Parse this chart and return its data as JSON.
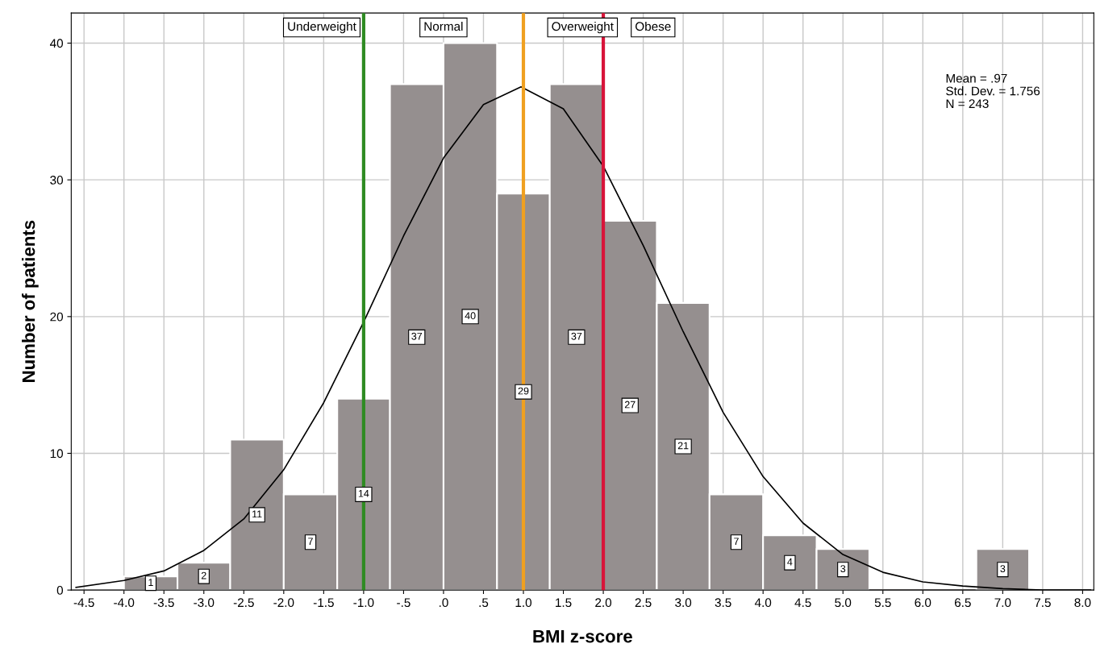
{
  "chart_data": {
    "type": "histogram",
    "xlabel": "BMI z-score",
    "ylabel": "Number of patients",
    "bins": [
      -4.0,
      -3.33,
      -2.67,
      -2.0,
      -1.33,
      -0.67,
      0.0,
      0.67,
      1.33,
      2.0,
      2.67,
      3.33,
      4.0,
      4.67,
      5.33,
      6.0,
      6.67,
      7.33
    ],
    "values": [
      1,
      2,
      11,
      7,
      14,
      37,
      40,
      29,
      37,
      27,
      21,
      7,
      4,
      3,
      0,
      0,
      3
    ],
    "value_labels": [
      "1",
      "2",
      "11",
      "7",
      "14",
      "37",
      "40",
      "29",
      "37",
      "27",
      "21",
      "7",
      "4",
      "3",
      null,
      null,
      "3"
    ],
    "color": "#958f8f",
    "series": [
      {
        "type": "line",
        "color": "#000000",
        "x": [
          -4.6,
          -4.0,
          -3.5,
          -3.0,
          -2.5,
          -2.0,
          -1.5,
          -1.0,
          -0.5,
          0.0,
          0.5,
          0.97,
          1.5,
          2.0,
          2.5,
          3.0,
          3.5,
          4.0,
          4.5,
          5.0,
          5.5,
          6.0,
          6.5,
          7.0,
          7.5,
          8.1
        ],
        "values": [
          0.2,
          0.7,
          1.4,
          2.9,
          5.2,
          8.8,
          13.7,
          19.6,
          25.9,
          31.6,
          35.5,
          36.8,
          35.2,
          31.0,
          25.2,
          18.9,
          13.0,
          8.3,
          4.9,
          2.6,
          1.3,
          0.6,
          0.3,
          0.1,
          0.0,
          0.0
        ]
      }
    ],
    "ref_lines": [
      {
        "axis": "x",
        "value": -1.0,
        "color": "#2e8b22"
      },
      {
        "axis": "x",
        "value": 1.0,
        "color": "#f0a020"
      },
      {
        "axis": "x",
        "value": 2.0,
        "color": "#d8143a"
      }
    ],
    "annotations": [
      "Underweight",
      "Normal",
      "Overweight",
      "Obese",
      "Mean = .97",
      "Std. Dev. = 1.756",
      "N = 243"
    ],
    "xlim": [
      -4.66,
      8.14
    ],
    "ylim": [
      0,
      42.2
    ],
    "xticks": [
      {
        "value": -4.5,
        "label": "-4.5"
      },
      {
        "value": -4,
        "label": "-4.0"
      },
      {
        "value": -3.5,
        "label": "-3.5"
      },
      {
        "value": -3,
        "label": "-3.0"
      },
      {
        "value": -2.5,
        "label": "-2.5"
      },
      {
        "value": -2,
        "label": "-2.0"
      },
      {
        "value": -1.5,
        "label": "-1.5"
      },
      {
        "value": -1,
        "label": "-1.0"
      },
      {
        "value": -0.5,
        "label": "-.5"
      },
      {
        "value": 0,
        "label": ".0"
      },
      {
        "value": 0.5,
        "label": ".5"
      },
      {
        "value": 1,
        "label": "1.0"
      },
      {
        "value": 1.5,
        "label": "1.5"
      },
      {
        "value": 2,
        "label": "2.0"
      },
      {
        "value": 2.5,
        "label": "2.5"
      },
      {
        "value": 3,
        "label": "3.0"
      },
      {
        "value": 3.5,
        "label": "3.5"
      },
      {
        "value": 4,
        "label": "4.0"
      },
      {
        "value": 4.5,
        "label": "4.5"
      },
      {
        "value": 5,
        "label": "5.0"
      },
      {
        "value": 5.5,
        "label": "5.5"
      },
      {
        "value": 6,
        "label": "6.0"
      },
      {
        "value": 6.5,
        "label": "6.5"
      },
      {
        "value": 7,
        "label": "7.0"
      },
      {
        "value": 7.5,
        "label": "7.5"
      },
      {
        "value": 8,
        "label": "8.0"
      }
    ],
    "yticks": [
      0,
      10,
      20,
      30,
      40
    ],
    "grid": true
  }
}
